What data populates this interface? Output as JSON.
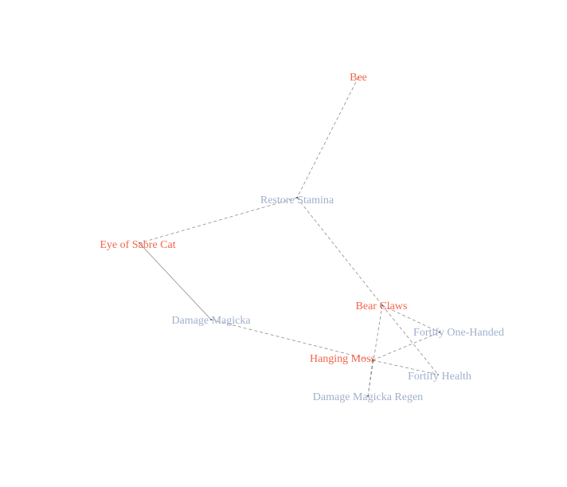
{
  "colors": {
    "ingredient": "#f4644a",
    "effect": "#a0b0cc",
    "edge": "#8c8c8c"
  },
  "nodes": [
    {
      "id": "bee",
      "label": "Bee",
      "kind": "ingredient"
    },
    {
      "id": "restore-stamina",
      "label": "Restore Stamina",
      "kind": "effect"
    },
    {
      "id": "eye-of-sabre-cat",
      "label": "Eye of Sabre Cat",
      "kind": "ingredient"
    },
    {
      "id": "damage-magicka",
      "label": "Damage Magicka",
      "kind": "effect"
    },
    {
      "id": "bear-claws",
      "label": "Bear Claws",
      "kind": "ingredient"
    },
    {
      "id": "fortify-one-handed",
      "label": "Fortify One-Handed",
      "kind": "effect"
    },
    {
      "id": "hanging-moss",
      "label": "Hanging Moss",
      "kind": "ingredient"
    },
    {
      "id": "fortify-health",
      "label": "Fortify Health",
      "kind": "effect"
    },
    {
      "id": "damage-magicka-regen",
      "label": "Damage Magicka Regen",
      "kind": "effect"
    }
  ],
  "edges": [
    {
      "from": "bee",
      "to": "restore-stamina",
      "style": "dashed"
    },
    {
      "from": "restore-stamina",
      "to": "eye-of-sabre-cat",
      "style": "dashed"
    },
    {
      "from": "restore-stamina",
      "to": "bear-claws",
      "style": "dashed"
    },
    {
      "from": "eye-of-sabre-cat",
      "to": "damage-magicka",
      "style": "solid"
    },
    {
      "from": "damage-magicka",
      "to": "hanging-moss",
      "style": "dashed"
    },
    {
      "from": "bear-claws",
      "to": "fortify-one-handed",
      "style": "dashed"
    },
    {
      "from": "bear-claws",
      "to": "fortify-health",
      "style": "dashed"
    },
    {
      "from": "bear-claws",
      "to": "damage-magicka-regen",
      "style": "dashed"
    },
    {
      "from": "hanging-moss",
      "to": "fortify-one-handed",
      "style": "dashed"
    },
    {
      "from": "hanging-moss",
      "to": "fortify-health",
      "style": "dashed"
    },
    {
      "from": "hanging-moss",
      "to": "damage-magicka-regen",
      "style": "dashed"
    }
  ]
}
